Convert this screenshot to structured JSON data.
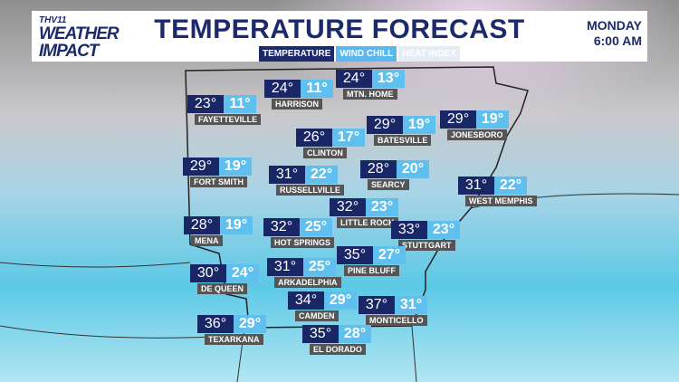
{
  "header": {
    "logo_top": "THV11",
    "logo_main": "WEATHER",
    "logo_sub": "IMPACT",
    "title": "TEMPERATURE FORECAST",
    "tabs": [
      "TEMPERATURE",
      "WIND CHILL",
      "HEAT INDEX"
    ],
    "day": "MONDAY",
    "time": "6:00 AM"
  },
  "cities": [
    {
      "name": "FAYETTEVILLE",
      "temp": "23°",
      "wind_chill": "11°"
    },
    {
      "name": "HARRISON",
      "temp": "24°",
      "wind_chill": "11°"
    },
    {
      "name": "MTN. HOME",
      "temp": "24°",
      "wind_chill": "13°"
    },
    {
      "name": "BATESVILLE",
      "temp": "29°",
      "wind_chill": "19°"
    },
    {
      "name": "JONESBORO",
      "temp": "29°",
      "wind_chill": "19°"
    },
    {
      "name": "CLINTON",
      "temp": "26°",
      "wind_chill": "17°"
    },
    {
      "name": "FORT SMITH",
      "temp": "29°",
      "wind_chill": "19°"
    },
    {
      "name": "RUSSELLVILLE",
      "temp": "31°",
      "wind_chill": "22°"
    },
    {
      "name": "SEARCY",
      "temp": "28°",
      "wind_chill": "20°"
    },
    {
      "name": "WEST MEMPHIS",
      "temp": "31°",
      "wind_chill": "22°"
    },
    {
      "name": "LITTLE ROCK",
      "temp": "32°",
      "wind_chill": "23°"
    },
    {
      "name": "MENA",
      "temp": "28°",
      "wind_chill": "19°"
    },
    {
      "name": "HOT SPRINGS",
      "temp": "32°",
      "wind_chill": "25°"
    },
    {
      "name": "STUTTGART",
      "temp": "33°",
      "wind_chill": "23°"
    },
    {
      "name": "PINE BLUFF",
      "temp": "35°",
      "wind_chill": "27°"
    },
    {
      "name": "DE QUEEN",
      "temp": "30°",
      "wind_chill": "24°"
    },
    {
      "name": "ARKADELPHIA",
      "temp": "31°",
      "wind_chill": "25°"
    },
    {
      "name": "CAMDEN",
      "temp": "34°",
      "wind_chill": "29°"
    },
    {
      "name": "MONTICELLO",
      "temp": "37°",
      "wind_chill": "31°"
    },
    {
      "name": "TEXARKANA",
      "temp": "36°",
      "wind_chill": "29°"
    },
    {
      "name": "EL DORADO",
      "temp": "35°",
      "wind_chill": "28°"
    }
  ]
}
